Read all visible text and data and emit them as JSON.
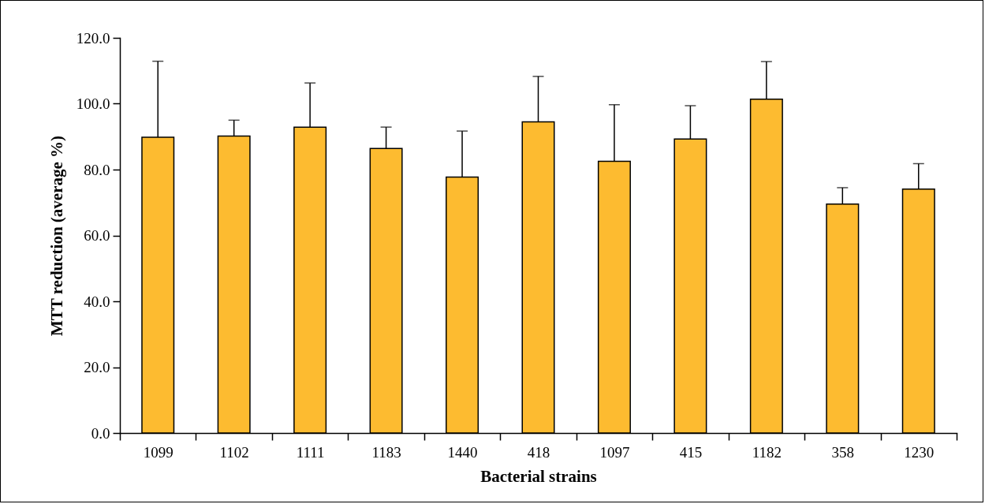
{
  "chart_data": {
    "type": "bar",
    "xlabel": "Bacterial strains",
    "ylabel": "MTT reduction (average %)",
    "categories": [
      "1099",
      "1102",
      "1111",
      "1183",
      "1440",
      "418",
      "1097",
      "415",
      "1182",
      "358",
      "1230"
    ],
    "values": [
      89.8,
      90.2,
      92.9,
      86.4,
      77.7,
      94.5,
      82.5,
      89.3,
      101.4,
      69.5,
      74.1
    ],
    "errors": [
      [
        89.8,
        112.9
      ],
      [
        90.2,
        95.0
      ],
      [
        92.9,
        106.3
      ],
      [
        86.4,
        92.9
      ],
      [
        77.7,
        91.7
      ],
      [
        94.5,
        108.3
      ],
      [
        82.5,
        99.7
      ],
      [
        89.3,
        99.4
      ],
      [
        101.4,
        112.8
      ],
      [
        69.5,
        74.5
      ],
      [
        74.1,
        81.8
      ]
    ],
    "color": "#fdbb30",
    "ylim": [
      0,
      120
    ],
    "yticks": [
      {
        "value": 0,
        "label": "0.0"
      },
      {
        "value": 20,
        "label": "20.0"
      },
      {
        "value": 40,
        "label": "40.0"
      },
      {
        "value": 60,
        "label": "60.0"
      },
      {
        "value": 80,
        "label": "80.0"
      },
      {
        "value": 100,
        "label": "100.0"
      },
      {
        "value": 120,
        "label": "120.0"
      }
    ],
    "grid": false
  }
}
